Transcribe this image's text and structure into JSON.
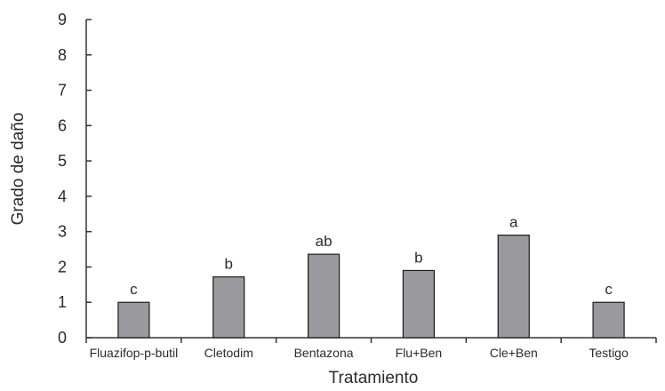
{
  "chart_data": {
    "type": "bar",
    "categories": [
      "Fluazifop-p-butil",
      "Cletodim",
      "Bentazona",
      "Flu+Ben",
      "Cle+Ben",
      "Testigo"
    ],
    "values": [
      1.0,
      1.72,
      2.36,
      1.9,
      2.9,
      1.0
    ],
    "data_labels": [
      "c",
      "b",
      "ab",
      "b",
      "a",
      "c"
    ],
    "title": "",
    "xlabel": "Tratamiento",
    "ylabel": "Grado de daño",
    "ylim": [
      0,
      9
    ],
    "yticks": [
      "0",
      "1",
      "2",
      "3",
      "4",
      "5",
      "6",
      "7",
      "8",
      "9"
    ],
    "grid": false,
    "legend": "none",
    "bar_color": "#9a9a9e",
    "bar_edge_color": "#1a1a1a"
  }
}
